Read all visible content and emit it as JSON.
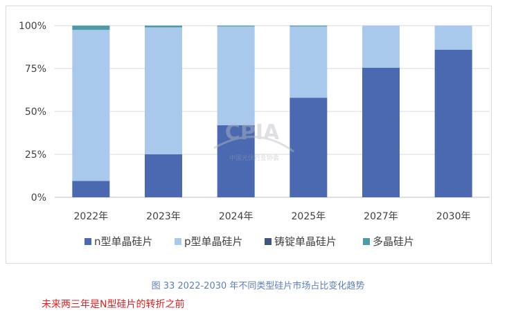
{
  "chart_data": {
    "type": "bar",
    "stacked": true,
    "categories": [
      "2022年",
      "2023年",
      "2024年",
      "2025年",
      "2027年",
      "2030年"
    ],
    "series": [
      {
        "name": "n型单晶硅片",
        "color": "#4a69b0",
        "values": [
          9.5,
          25.0,
          42.0,
          58.0,
          75.5,
          86.0
        ]
      },
      {
        "name": "p型单晶硅片",
        "color": "#a8c8ec",
        "values": [
          88.0,
          74.0,
          57.5,
          41.5,
          24.5,
          14.0
        ]
      },
      {
        "name": "铸锭单晶硅片",
        "color": "#3f567e",
        "values": [
          0,
          0,
          0,
          0,
          0,
          0
        ]
      },
      {
        "name": "多晶硅片",
        "color": "#4e9ba8",
        "values": [
          2.5,
          1.0,
          0.5,
          0.5,
          0,
          0
        ]
      }
    ],
    "yticks": [
      "0%",
      "25%",
      "50%",
      "75%",
      "100%"
    ],
    "ylim": [
      0,
      100
    ],
    "grid": true,
    "legend_position": "bottom"
  },
  "watermark": {
    "title": "CPIA",
    "subtitle": "中国光伏行业协会"
  },
  "caption": "图 33    2022-2030 年不同类型硅片市场占比变化趋势",
  "note": "未来两三年是N型硅片的转折之前"
}
